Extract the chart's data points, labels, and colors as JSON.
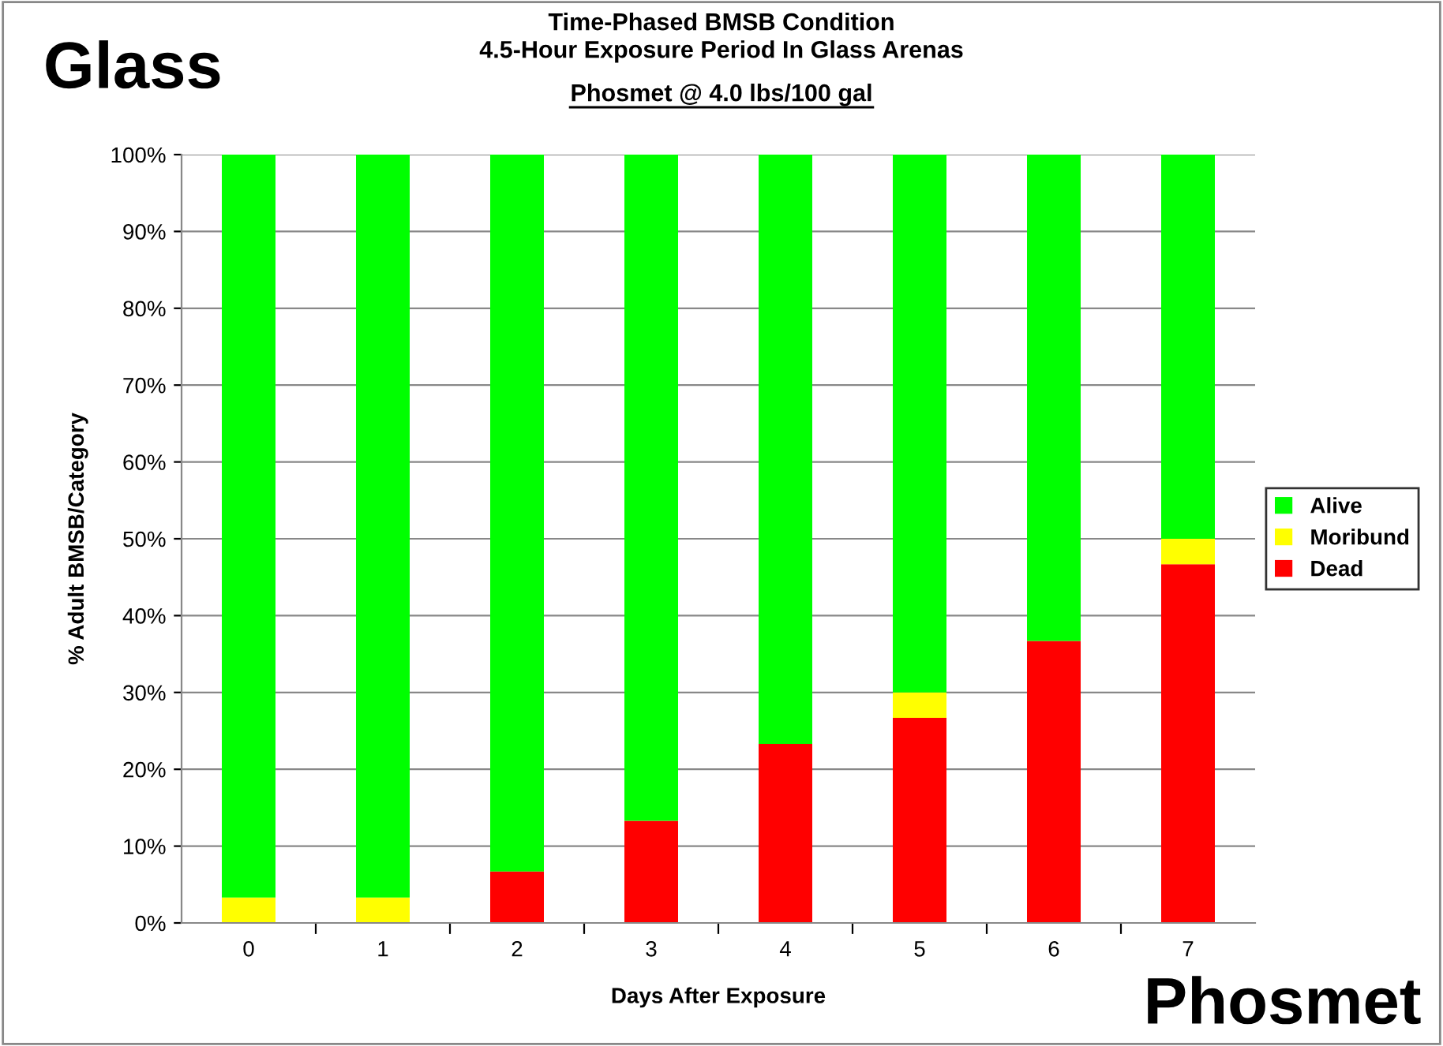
{
  "chart_data": {
    "type": "bar",
    "stacked": true,
    "title": "Time-Phased BMSB Condition\n4.5-Hour Exposure Period In Glass Arenas",
    "subtitle": "Phosmet @ 4.0 lbs/100 gal",
    "xlabel": "Days After Exposure",
    "ylabel": "% Adult BMSB/Category",
    "categories": [
      "0",
      "1",
      "2",
      "3",
      "4",
      "5",
      "6",
      "7"
    ],
    "series": [
      {
        "name": "Dead",
        "color": "#ff0000",
        "values": [
          0,
          0,
          6.7,
          13.3,
          23.3,
          26.7,
          36.7,
          46.7
        ]
      },
      {
        "name": "Moribund",
        "color": "#ffff00",
        "values": [
          3.3,
          3.3,
          0,
          0,
          0,
          3.3,
          0,
          3.3
        ]
      },
      {
        "name": "Alive",
        "color": "#00ff00",
        "values": [
          96.7,
          96.7,
          93.3,
          86.7,
          76.7,
          70,
          63.3,
          50
        ]
      }
    ],
    "ylim": [
      0,
      100
    ],
    "yticks": [
      {
        "value": 0,
        "label": "0%"
      },
      {
        "value": 10,
        "label": "10%"
      },
      {
        "value": 20,
        "label": "20%"
      },
      {
        "value": 30,
        "label": "30%"
      },
      {
        "value": 40,
        "label": "40%"
      },
      {
        "value": 50,
        "label": "50%"
      },
      {
        "value": 60,
        "label": "60%"
      },
      {
        "value": 70,
        "label": "70%"
      },
      {
        "value": 80,
        "label": "80%"
      },
      {
        "value": 90,
        "label": "90%"
      },
      {
        "value": 100,
        "label": "100%"
      }
    ],
    "grid": "y",
    "legend": "right",
    "annotations": [
      "Glass",
      "Phosmet"
    ]
  }
}
